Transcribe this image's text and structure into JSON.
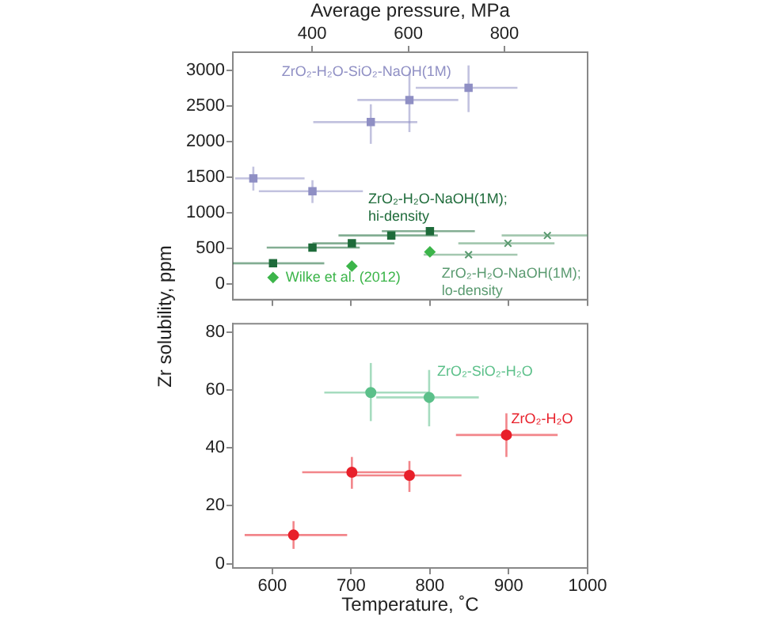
{
  "chart_data": [
    {
      "type": "scatter",
      "ylabel": "Zr solubility, ppm",
      "x2label": "Average pressure, MPa",
      "xlim": [
        550,
        1000
      ],
      "xticks": [
        600,
        700,
        800,
        900,
        1000
      ],
      "x2lim": [
        235,
        973
      ],
      "x2ticks": [
        400,
        600,
        800
      ],
      "ylim": [
        -220,
        3250
      ],
      "yticks": [
        0,
        500,
        1000,
        1500,
        2000,
        2500,
        3000
      ],
      "tick_labels": "y",
      "grid": false,
      "legend": false,
      "series": [
        {
          "name": "ZrO₂-H₂O-SiO₂-NaOH(1M)",
          "color": "#8f8fc4",
          "marker": "square",
          "x": [
            576,
            651,
            725,
            774,
            849
          ],
          "values": [
            1480,
            1300,
            2270,
            2580,
            2750
          ],
          "errors": [
            [
              1310,
              1645
            ],
            [
              1135,
              1455
            ],
            [
              1965,
              2520
            ],
            [
              2130,
              2980
            ],
            [
              2410,
              3065
            ]
          ],
          "xerrors": [
            [
              553,
              641
            ],
            [
              583,
              715
            ],
            [
              652,
              784
            ],
            [
              708,
              836
            ],
            [
              782,
              911
            ]
          ]
        },
        {
          "name": "ZrO₂-H₂O-NaOH(1M);\nhi-density",
          "color": "#1e6b3a",
          "marker": "square",
          "x": [
            601,
            651,
            701,
            751,
            800
          ],
          "values": [
            290,
            510,
            570,
            680,
            740
          ],
          "xerrors": [
            [
              550,
              666
            ],
            [
              593,
              711
            ],
            [
              651,
              755
            ],
            [
              684,
              810
            ],
            [
              739,
              857
            ]
          ]
        },
        {
          "name": "Wilke et al. (2012)",
          "color": "#3cb54a",
          "marker": "diamond",
          "x": [
            601,
            701,
            800
          ],
          "values": [
            90,
            250,
            450
          ]
        },
        {
          "name": "ZrO₂-H₂O-NaOH(1M);\nlo-density",
          "color": "#5a9a70",
          "marker": "cross",
          "x": [
            849,
            899,
            949
          ],
          "values": [
            410,
            570,
            680
          ],
          "xerrors": [
            [
              792,
              911
            ],
            [
              836,
              958
            ],
            [
              891,
              1000
            ]
          ]
        }
      ]
    },
    {
      "type": "scatter",
      "xlabel": "Temperature, ˚C",
      "xlim": [
        550,
        1000
      ],
      "xticks": [
        600,
        700,
        800,
        900,
        1000
      ],
      "ylim": [
        -1.5,
        83
      ],
      "yticks": [
        0,
        20,
        40,
        60,
        80
      ],
      "grid": false,
      "legend": false,
      "series": [
        {
          "name": "ZrO₂-SiO₂-H₂O",
          "color": "#5cc08a",
          "marker": "circle",
          "x": [
            725,
            799
          ],
          "values": [
            59.2,
            57.5
          ],
          "errors": [
            [
              49.3,
              69.4
            ],
            [
              47.5,
              67
            ]
          ],
          "xerrors": [
            [
              666,
              799
            ],
            [
              732,
              862
            ]
          ]
        },
        {
          "name": "ZrO₂-H₂O",
          "color": "#e8202a",
          "marker": "circle",
          "x": [
            627,
            701,
            774,
            897
          ],
          "values": [
            9.9,
            31.6,
            30.5,
            44.5
          ],
          "errors": [
            [
              5.1,
              14.7
            ],
            [
              25.9,
              36.9
            ],
            [
              24.8,
              35.5
            ],
            [
              36.9,
              52
            ]
          ],
          "xerrors": [
            [
              565,
              695
            ],
            [
              638,
              772
            ],
            [
              701,
              840
            ],
            [
              833,
              962
            ]
          ]
        }
      ]
    }
  ]
}
